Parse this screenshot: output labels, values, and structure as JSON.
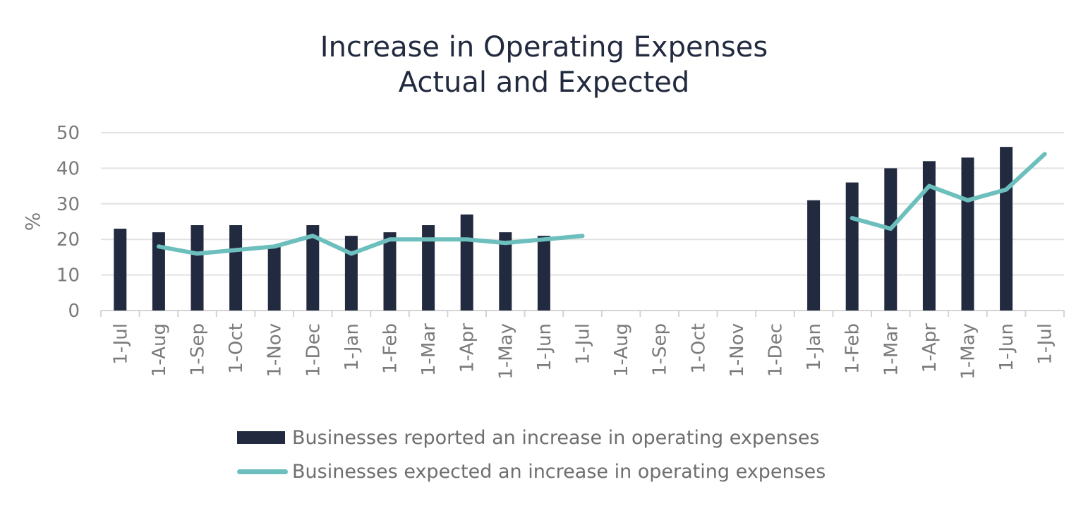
{
  "chart_data": {
    "type": "bar",
    "title": [
      "Increase in Operating Expenses",
      "Actual and Expected"
    ],
    "ylabel": "%",
    "ylim": [
      0,
      50
    ],
    "yticks": [
      0,
      10,
      20,
      30,
      40,
      50
    ],
    "grid": true,
    "legend_position": "bottom",
    "categories": [
      "1-Jul",
      "1-Aug",
      "1-Sep",
      "1-Oct",
      "1-Nov",
      "1-Dec",
      "1-Jan",
      "1-Feb",
      "1-Mar",
      "1-Apr",
      "1-May",
      "1-Jun",
      "1-Jul",
      "1-Aug",
      "1-Sep",
      "1-Oct",
      "1-Nov",
      "1-Dec",
      "1-Jan",
      "1-Feb",
      "1-Mar",
      "1-Apr",
      "1-May",
      "1-Jun",
      "1-Jul"
    ],
    "series": [
      {
        "name": "Businesses reported an increase in operating expenses",
        "type": "bar",
        "color": "#222a3f",
        "values": [
          23,
          22,
          24,
          24,
          18,
          24,
          21,
          22,
          24,
          27,
          22,
          21,
          null,
          null,
          null,
          null,
          null,
          null,
          31,
          36,
          40,
          42,
          43,
          46,
          null
        ]
      },
      {
        "name": "Businesses expected an increase in operating expenses",
        "type": "line",
        "color": "#6cbfbd",
        "values": [
          null,
          18,
          16,
          17,
          18,
          21,
          16,
          20,
          20,
          20,
          19,
          20,
          21,
          null,
          null,
          null,
          null,
          null,
          null,
          26,
          23,
          35,
          31,
          34,
          44
        ]
      }
    ]
  }
}
